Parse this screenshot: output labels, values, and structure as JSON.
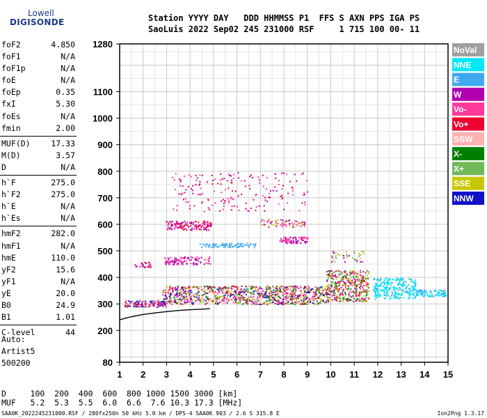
{
  "logo": {
    "line1": "Lowell",
    "line2": "DIGISONDE"
  },
  "header": {
    "line1": "Station YYYY DAY   DDD HHMMSS P1  FFS S AXN PPS IGA PS",
    "line2": "SaoLuis 2022 Sep02 245 231000 RSF     1 715 100 00- 11"
  },
  "params": [
    {
      "label": "foF2",
      "value": "4.850"
    },
    {
      "label": "foF1",
      "value": "N/A"
    },
    {
      "label": "foF1p",
      "value": "N/A"
    },
    {
      "label": "foE",
      "value": "N/A"
    },
    {
      "label": "foEp",
      "value": "0.35"
    },
    {
      "label": "fxI",
      "value": "5.30"
    },
    {
      "label": "foEs",
      "value": "N/A"
    },
    {
      "label": "fmin",
      "value": "2.00"
    },
    {
      "label": "MUF(D)",
      "value": "17.33",
      "sep": true
    },
    {
      "label": "M(D)",
      "value": "3.57"
    },
    {
      "label": "D",
      "value": "N/A"
    },
    {
      "label": "h`F",
      "value": "275.0",
      "sep": true
    },
    {
      "label": "h`F2",
      "value": "275.0"
    },
    {
      "label": "h`E",
      "value": "N/A"
    },
    {
      "label": "h`Es",
      "value": "N/A"
    },
    {
      "label": "hmF2",
      "value": "282.0",
      "sep": true
    },
    {
      "label": "hmF1",
      "value": "N/A"
    },
    {
      "label": "hmE",
      "value": "110.0"
    },
    {
      "label": "yF2",
      "value": "15.6"
    },
    {
      "label": "yF1",
      "value": "N/A"
    },
    {
      "label": "yE",
      "value": "20.0"
    },
    {
      "label": "B0",
      "value": "24.9"
    },
    {
      "label": "B1",
      "value": "1.01"
    },
    {
      "label": "C-level",
      "value": "44",
      "sep": true
    }
  ],
  "auto": {
    "line1": "Auto:",
    "line2": "Artist5",
    "line3": "500200"
  },
  "distance_table": {
    "d_row": "D     100  200  400  600  800 1000 1500 3000 [km]",
    "muf_row": "MUF   5.2  5.3  5.5  6.0  6.6  7.6 10.3 17.3 [MHz]"
  },
  "footer": {
    "left": "SAA0K_2022245231000.RSF / 280fx256h 50 kHz 5.0 km / DPS-4 SAA0K 903 / 2.6 S 315.8 E",
    "right": "Ion2Png 1.3.17"
  },
  "chart_data": {
    "type": "scatter",
    "title": "",
    "xlabel": "",
    "ylabel": "",
    "xlim": [
      1,
      15
    ],
    "ylim": [
      80,
      1280
    ],
    "x_ticks": [
      1,
      2,
      3,
      4,
      5,
      6,
      7,
      8,
      9,
      10,
      11,
      12,
      13,
      14,
      15
    ],
    "y_ticks": [
      80,
      200,
      300,
      400,
      500,
      600,
      700,
      800,
      900,
      1000,
      1100,
      1280
    ],
    "grid": true,
    "legend_position": "right",
    "legend": [
      {
        "name": "NoVal",
        "color": "#a0a0a0",
        "text": "#ffffff"
      },
      {
        "name": "NNE",
        "color": "#00e8f8",
        "text": "#ffffff"
      },
      {
        "name": "E",
        "color": "#40a8f0",
        "text": "#ffffff"
      },
      {
        "name": "W",
        "color": "#b000b0",
        "text": "#ffffff"
      },
      {
        "name": "Vo-",
        "color": "#ff3a9a",
        "text": "#ffffff"
      },
      {
        "name": "Vo+",
        "color": "#ee0030",
        "text": "#ffffff"
      },
      {
        "name": "SSW",
        "color": "#ffb0b0",
        "text": "#ffffff"
      },
      {
        "name": "X-",
        "color": "#008000",
        "text": "#ffffff"
      },
      {
        "name": "X+",
        "color": "#70b858",
        "text": "#ffffff"
      },
      {
        "name": "SSE",
        "color": "#c8c800",
        "text": "#ffffff"
      },
      {
        "name": "NNW",
        "color": "#1010c8",
        "text": "#ffffff"
      }
    ],
    "trace_curve": {
      "x": [
        1.0,
        1.5,
        2.0,
        2.5,
        3.0,
        3.5,
        4.0,
        4.5,
        4.85
      ],
      "y": [
        240,
        252,
        260,
        266,
        271,
        275,
        278,
        280,
        282
      ],
      "color": "#000000"
    },
    "echo_regions": [
      {
        "x": [
          1.2,
          3.0
        ],
        "y": [
          290,
          315
        ],
        "n": 160,
        "colors": [
          "#1010c8",
          "#b000b0",
          "#ff3a9a",
          "#a0a0a0",
          "#ee0030"
        ]
      },
      {
        "x": [
          2.8,
          9.8
        ],
        "y": [
          300,
          370
        ],
        "n": 1100,
        "colors": [
          "#ee0030",
          "#ff3a9a",
          "#b000b0",
          "#1010c8",
          "#008000",
          "#70b858",
          "#c8c800",
          "#ffb0b0"
        ]
      },
      {
        "x": [
          9.8,
          11.6
        ],
        "y": [
          310,
          430
        ],
        "n": 420,
        "colors": [
          "#ee0030",
          "#ff3a9a",
          "#b000b0",
          "#008000",
          "#70b858",
          "#c8c800"
        ]
      },
      {
        "x": [
          11.8,
          13.6
        ],
        "y": [
          320,
          400
        ],
        "n": 260,
        "colors": [
          "#00e8f8",
          "#40a8f0",
          "#00e8f8"
        ]
      },
      {
        "x": [
          13.6,
          14.9
        ],
        "y": [
          330,
          355
        ],
        "n": 90,
        "colors": [
          "#00e8f8",
          "#40a8f0"
        ]
      },
      {
        "x": [
          2.9,
          4.9
        ],
        "y": [
          580,
          615
        ],
        "n": 140,
        "colors": [
          "#b000b0",
          "#ff3a9a",
          "#ee0030"
        ]
      },
      {
        "x": [
          2.9,
          4.9
        ],
        "y": [
          450,
          480
        ],
        "n": 110,
        "colors": [
          "#b000b0",
          "#ff3a9a"
        ]
      },
      {
        "x": [
          3.2,
          9.0
        ],
        "y": [
          650,
          800
        ],
        "n": 180,
        "colors": [
          "#b000b0",
          "#ff3a9a",
          "#ee0030"
        ]
      },
      {
        "x": [
          4.4,
          6.8
        ],
        "y": [
          515,
          530
        ],
        "n": 90,
        "colors": [
          "#40a8f0"
        ]
      },
      {
        "x": [
          7.8,
          9.0
        ],
        "y": [
          530,
          555
        ],
        "n": 80,
        "colors": [
          "#b000b0",
          "#ff3a9a"
        ]
      },
      {
        "x": [
          1.6,
          2.3
        ],
        "y": [
          440,
          460
        ],
        "n": 25,
        "colors": [
          "#b000b0",
          "#ee0030"
        ]
      },
      {
        "x": [
          7.0,
          8.9
        ],
        "y": [
          590,
          620
        ],
        "n": 70,
        "colors": [
          "#b000b0",
          "#ff3a9a",
          "#c8c800"
        ]
      },
      {
        "x": [
          10.0,
          11.4
        ],
        "y": [
          460,
          500
        ],
        "n": 40,
        "colors": [
          "#b000b0",
          "#c8c800",
          "#70b858"
        ]
      }
    ]
  }
}
